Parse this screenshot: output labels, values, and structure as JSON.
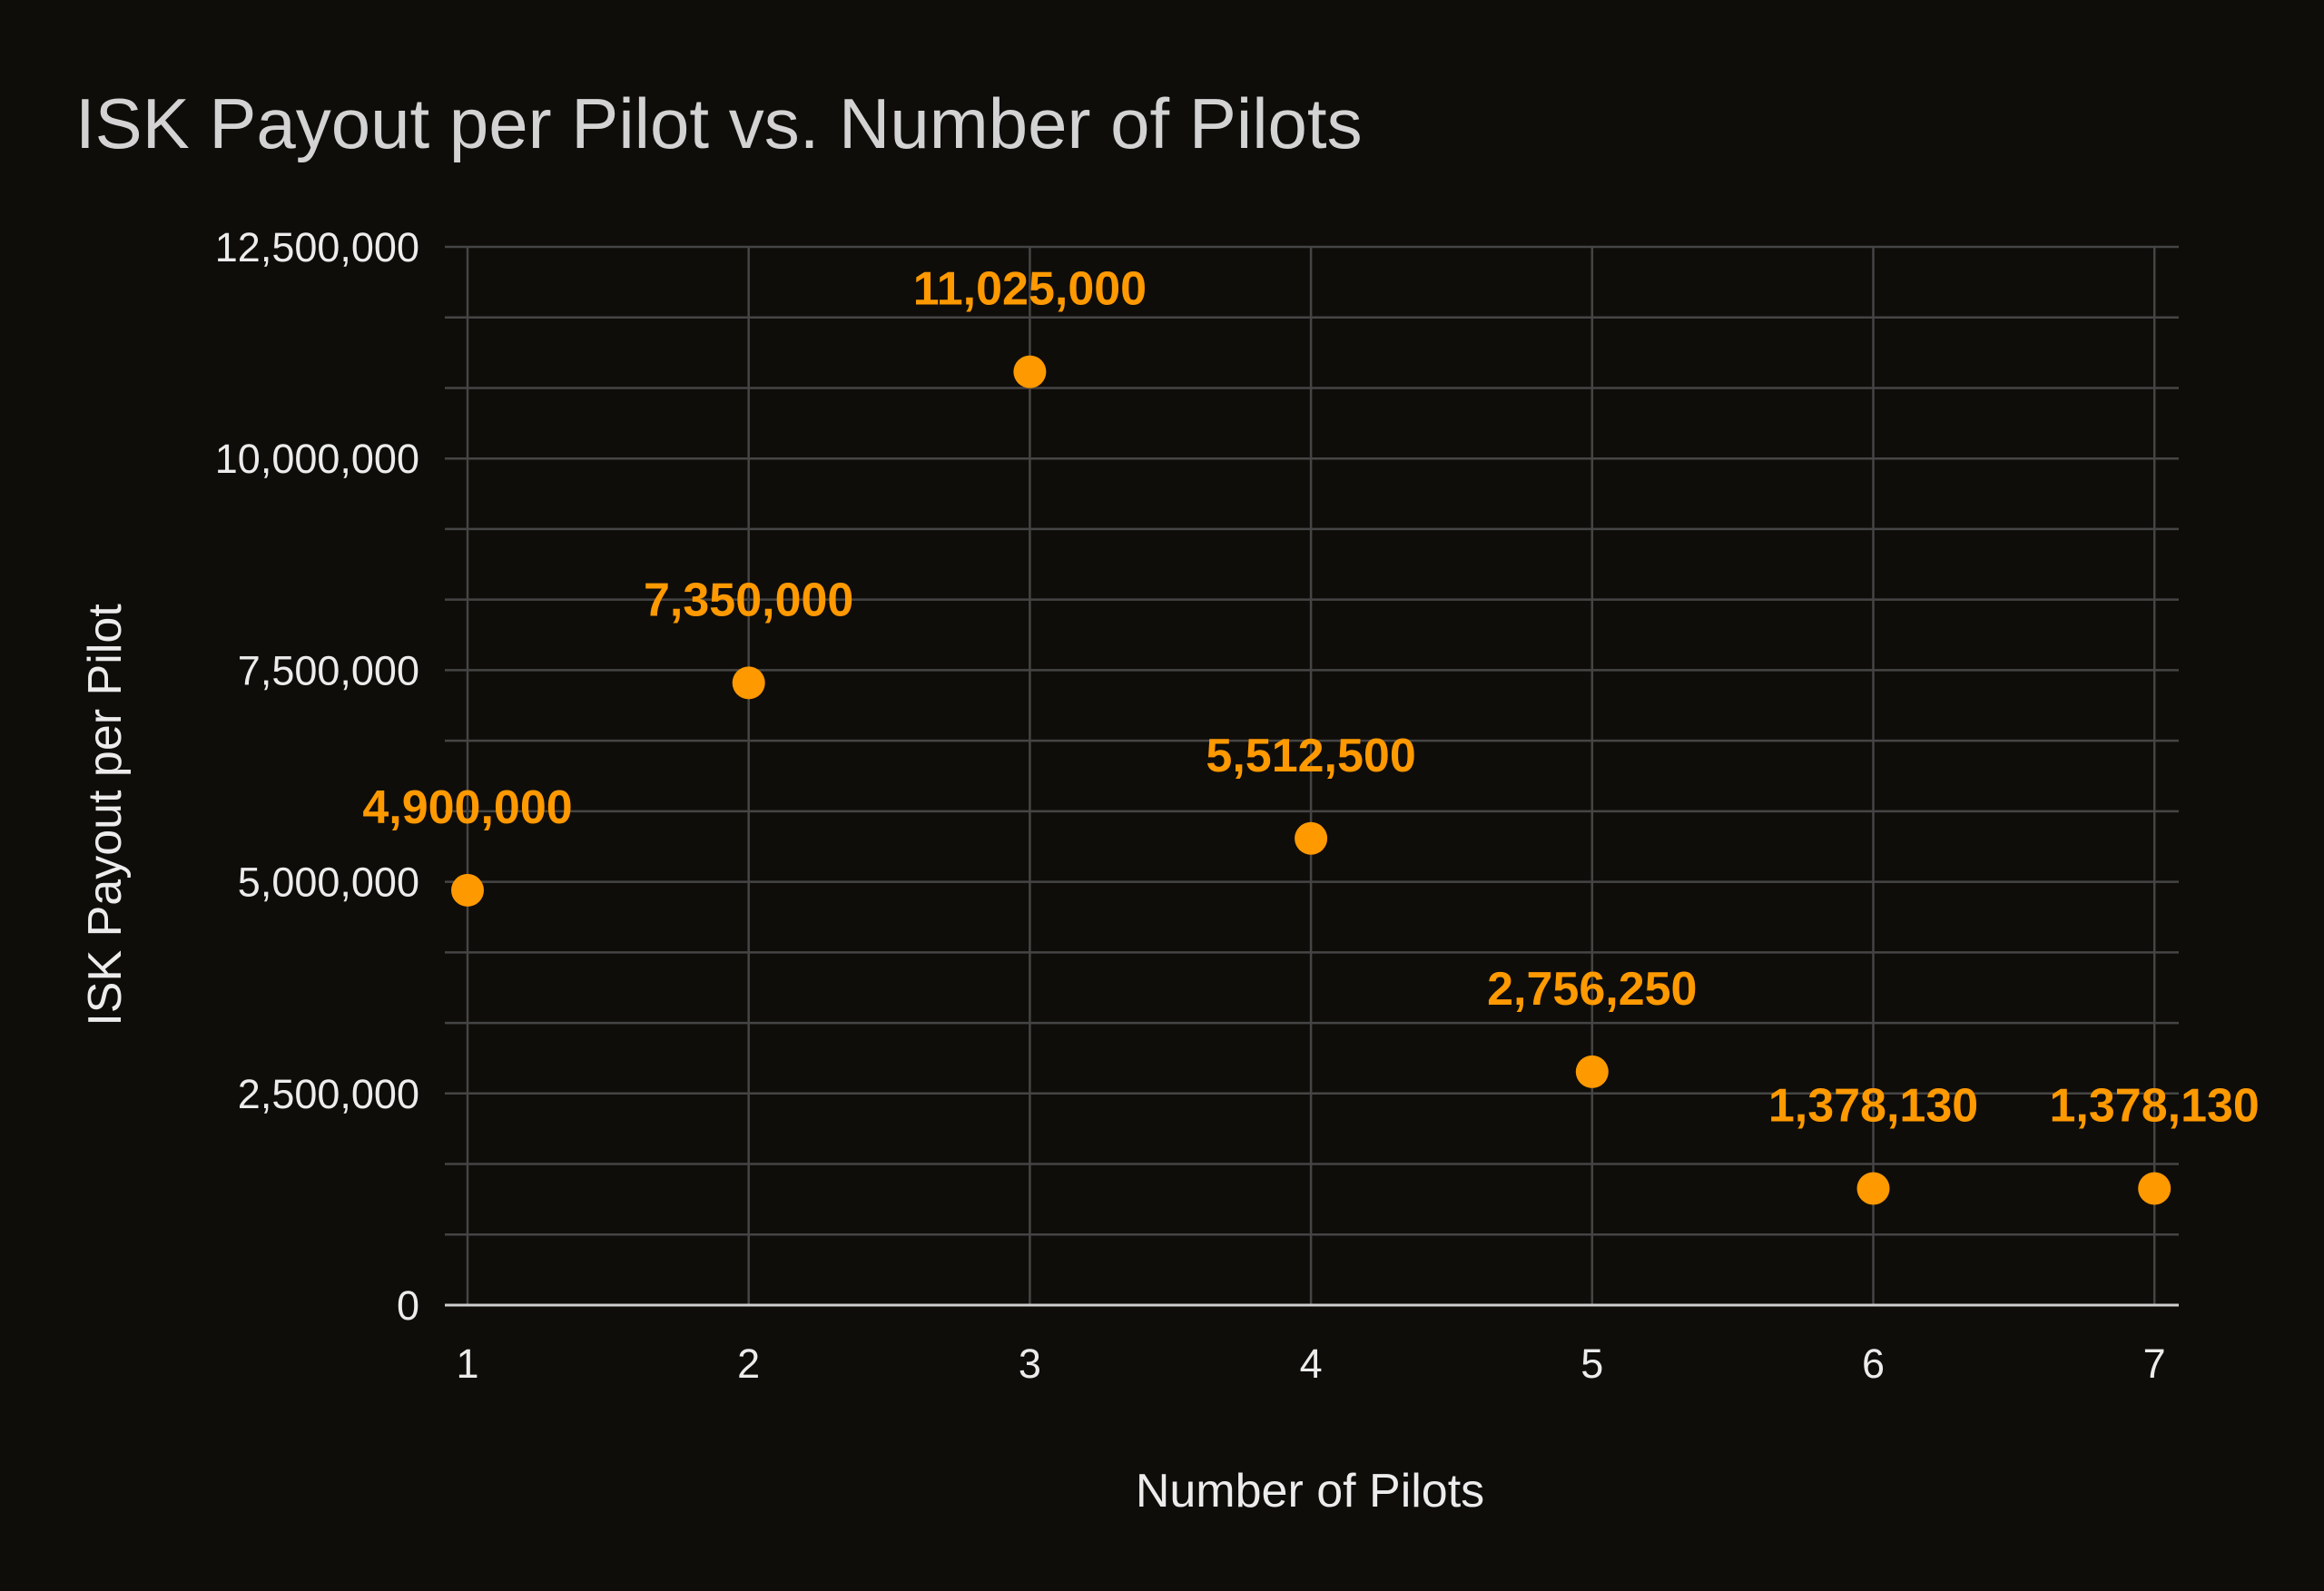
{
  "chart_data": {
    "type": "scatter",
    "title": "ISK Payout per Pilot vs. Number of Pilots",
    "xlabel": "Number of Pilots",
    "ylabel": "ISK Payout per Pilot",
    "x": [
      1,
      2,
      3,
      4,
      5,
      6,
      7
    ],
    "y": [
      4900000,
      7350000,
      11025000,
      5512500,
      2756250,
      1378130,
      1378130
    ],
    "data_labels": [
      "4,900,000",
      "7,350,000",
      "11,025,000",
      "5,512,500",
      "2,756,250",
      "1,378,130",
      "1,378,130"
    ],
    "xlim": [
      1,
      7
    ],
    "ylim": [
      0,
      12500000
    ],
    "x_ticks": [
      "1",
      "2",
      "3",
      "4",
      "5",
      "6",
      "7"
    ],
    "y_ticks": [
      {
        "value": 0,
        "label": "0"
      },
      {
        "value": 2500000,
        "label": "2,500,000"
      },
      {
        "value": 5000000,
        "label": "5,000,000"
      },
      {
        "value": 7500000,
        "label": "7,500,000"
      },
      {
        "value": 10000000,
        "label": "10,000,000"
      },
      {
        "value": 12500000,
        "label": "12,500,000"
      }
    ],
    "y_minor_step": 833333.33,
    "grid": true,
    "legend": "none",
    "colors": {
      "background": "#0f0d0a",
      "point": "#ff9900",
      "label": "#ff9900",
      "grid": "#454545",
      "baseline": "#cfcfcf",
      "text": "#ececec",
      "title": "#d3d3d3"
    }
  }
}
